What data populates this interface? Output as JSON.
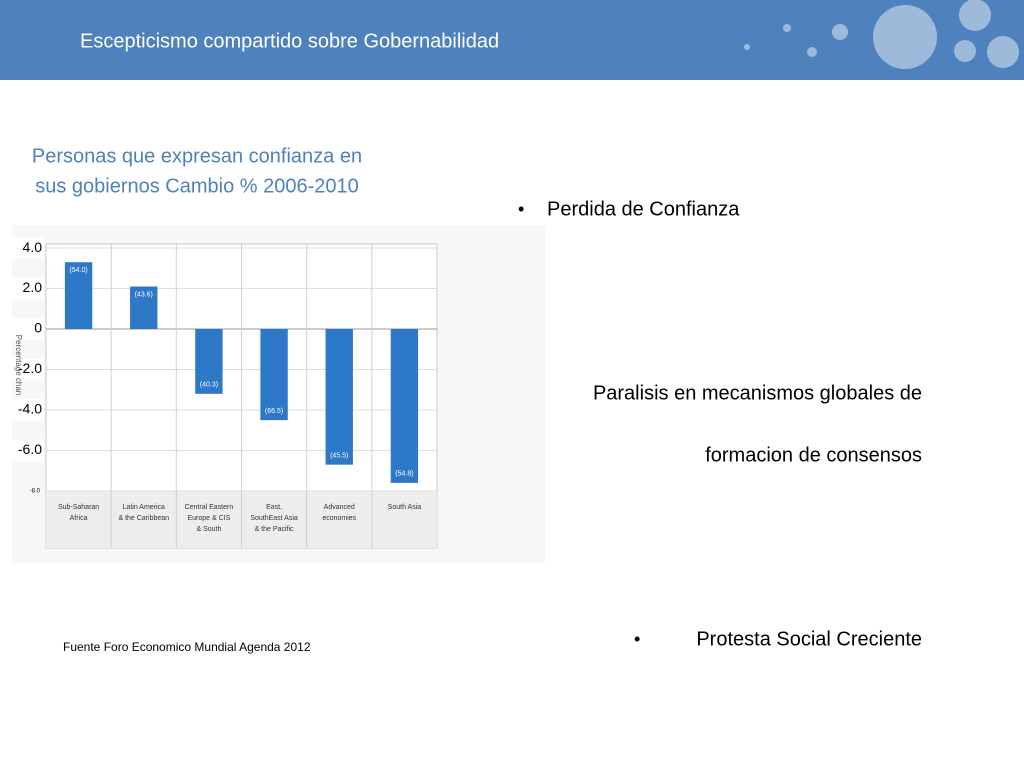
{
  "header": {
    "title": "Escepticismo compartido sobre Gobernabilidad"
  },
  "chart_data": {
    "type": "bar",
    "title": [
      "Personas que expresan confianza en",
      "sus gobiernos Cambio % 2006-2010"
    ],
    "y_axis_label": "Percentage chan",
    "categories": [
      [
        "Sub-Saharan",
        "Africa"
      ],
      [
        "Latin America",
        "& the Caribbean"
      ],
      [
        "Central Eastern",
        "Europe &  CIS",
        "& South"
      ],
      [
        "East,",
        "SouthEast Asia",
        "& the Pacific"
      ],
      [
        "Advanced",
        "economies"
      ],
      [
        "South Asia"
      ]
    ],
    "values": [
      3.3,
      2.1,
      -3.2,
      -4.5,
      -6.7,
      -7.6
    ],
    "bar_annotations": [
      "(54.0)",
      "(43.6)",
      "(40.3)",
      "(66.5)",
      "(45.5)",
      "(54.8)"
    ],
    "color": "#2e78c8",
    "ylim": [
      -8,
      4.2
    ],
    "yticks": [
      {
        "value": 4,
        "label": "4.0"
      },
      {
        "value": 2,
        "label": "2.0"
      },
      0,
      {
        "value": -2,
        "label": "-2.0"
      },
      {
        "value": -4,
        "label": "-4.0"
      },
      {
        "value": -6,
        "label": "-6.0"
      },
      {
        "value": -8,
        "label": "-8.0"
      }
    ],
    "grid": true
  },
  "bullets": [
    "Perdida de Confianza",
    [
      "Paralisis en mecanismos globales de",
      "formacion de consensos"
    ],
    "Protesta Social Creciente"
  ],
  "source": "Fuente Foro Economico Mundial Agenda 2012"
}
